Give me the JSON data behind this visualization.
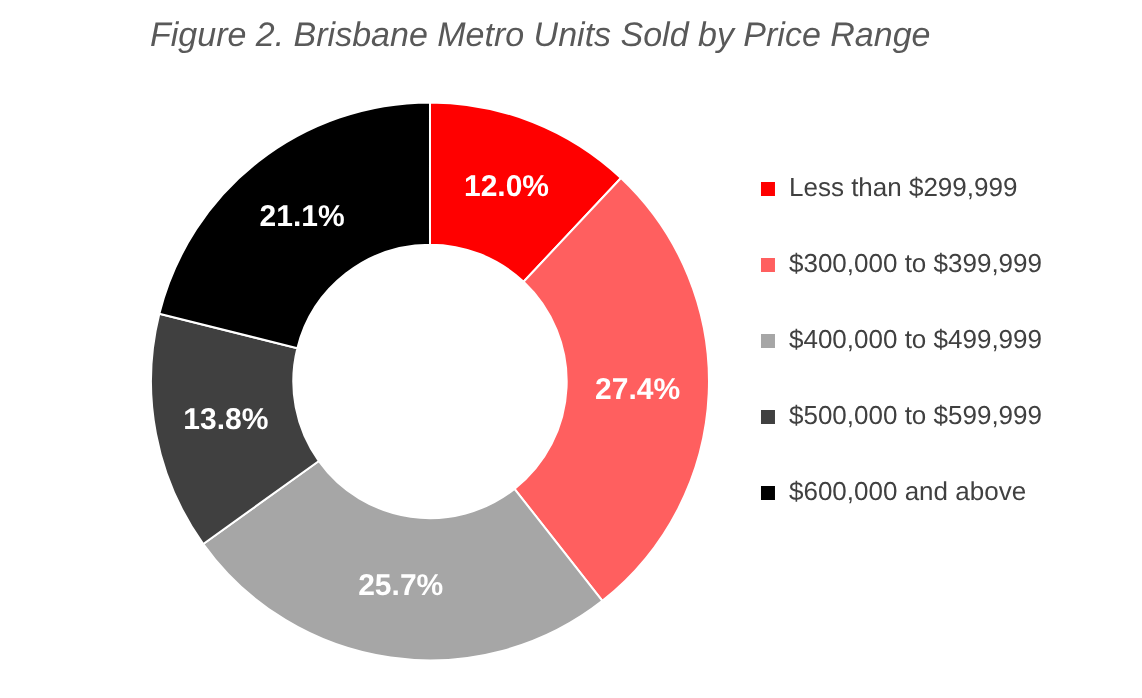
{
  "chart_data": {
    "type": "donut",
    "title": "Figure 2. Brisbane Metro Units Sold by Price Range",
    "categories": [
      "Less than $299,999",
      "$300,000 to $399,999",
      "$400,000 to $499,999",
      "$500,000 to $599,999",
      "$600,000 and above"
    ],
    "values": [
      12.0,
      27.4,
      25.7,
      13.8,
      21.1
    ],
    "value_labels": [
      "12.0%",
      "27.4%",
      "25.7%",
      "13.8%",
      "21.1%"
    ],
    "colors": [
      "#ff0000",
      "#ff5f5f",
      "#a6a6a6",
      "#404040",
      "#000000"
    ],
    "legend": "right"
  }
}
